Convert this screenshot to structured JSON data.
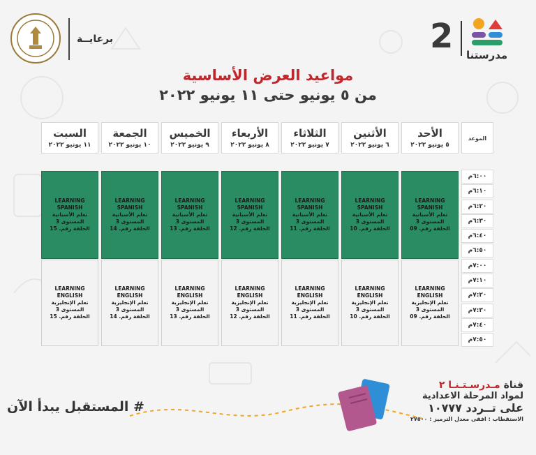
{
  "header": {
    "sponsor_label": "برعايــة",
    "logo_number": "2",
    "logo_word": "مدرستنا",
    "seal_icon": "ministry-seal-icon"
  },
  "title": "مواعيد العرض الأساسية",
  "subtitle": "من ٥ يونيو حتى ١١ يونيو ٢٠٢٢",
  "schedule": {
    "time_header": "الموعد",
    "days": [
      {
        "name": "الأحد",
        "date": "٥ يونيو ٢٠٢٢"
      },
      {
        "name": "الأثنين",
        "date": "٦ يونيو ٢٠٢٢"
      },
      {
        "name": "الثلاثاء",
        "date": "٧ يونيو ٢٠٢٢"
      },
      {
        "name": "الأربعاء",
        "date": "٨ يونيو ٢٠٢٢"
      },
      {
        "name": "الخميس",
        "date": "٩ يونيو ٢٠٢٢"
      },
      {
        "name": "الجمعة",
        "date": "١٠ يونيو ٢٠٢٢"
      },
      {
        "name": "السبت",
        "date": "١١ يونيو ٢٠٢٢"
      }
    ],
    "times": [
      "٦:٠٠م",
      "٦:١٠م",
      "٦:٢٠م",
      "٦:٣٠م",
      "٦:٤٠م",
      "٦:٥٠م",
      "٧:٠٠م",
      "٧:١٠م",
      "٧:٢٠م",
      "٧:٣٠م",
      "٧:٤٠م",
      "٧:٥٠م"
    ],
    "spanish": {
      "title_en": "LEARNING SPANISH",
      "title_ar": "تعلم الأسبانية",
      "level": "المستوى 3",
      "episodes": [
        "الحلقة رقم. 09",
        "الحلقة رقم. 10",
        "الحلقة رقم. 11",
        "الحلقة رقم. 12",
        "الحلقة رقم. 13",
        "الحلقة رقم. 14",
        "الحلقة رقم. 15"
      ]
    },
    "english": {
      "title_en": "LEARNING ENGLISH",
      "title_ar": "تعلم الإنجليزية",
      "level": "المستوى 3",
      "episodes": [
        "الحلقة رقم. 09",
        "الحلقة رقم. 10",
        "الحلقة رقم. 11",
        "الحلقة رقم. 12",
        "الحلقة رقم. 13",
        "الحلقة رقم. 14",
        "الحلقة رقم. 15"
      ]
    }
  },
  "footer": {
    "hashtag": "# المستقبل يبدأ الآن",
    "channel_prefix": "قناة ",
    "channel_name": "مـدرسـتـنـا ٢",
    "line2": "لمواد المرحلة الاعدادية",
    "line3": "على تــردد ١٠٧٧٧",
    "reception": "الاستقطاب : افقى معدل الترميز : ٢٧٥٠٠"
  },
  "colors": {
    "title_red": "#c0272d",
    "spanish_green": "#2a8c63",
    "english_gray": "#f3f3f3"
  }
}
